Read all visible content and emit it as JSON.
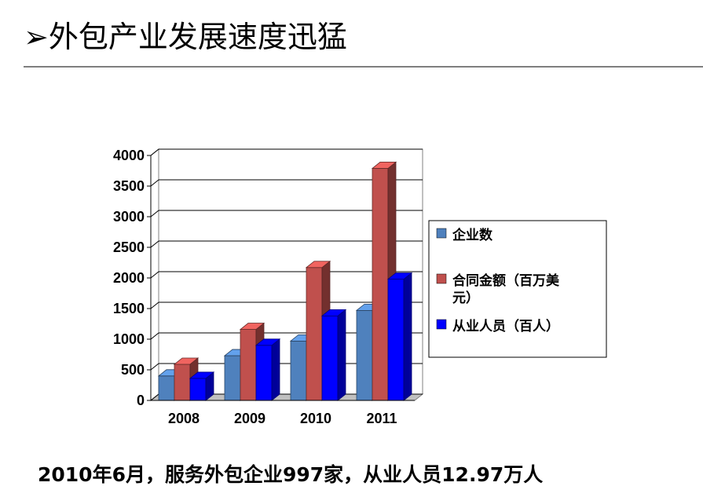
{
  "slide": {
    "title": "➢外包产业发展速度迅猛",
    "footer": "2010年6月，服务外包企业997家，从业人员12.97万人"
  },
  "chart_data": {
    "type": "bar",
    "categories": [
      "2008",
      "2009",
      "2010",
      "2011"
    ],
    "series": [
      {
        "name": "企业数",
        "values": [
          400,
          730,
          970,
          1470
        ],
        "color": "#4f81bd"
      },
      {
        "name": "合同金额（百万美元）",
        "values": [
          590,
          1160,
          2170,
          3790
        ],
        "color": "#c0504d"
      },
      {
        "name": "从业人员（百人）",
        "values": [
          360,
          900,
          1380,
          1980
        ],
        "color": "#0000ff"
      }
    ],
    "ylim": [
      0,
      4000
    ],
    "yticks": [
      "0",
      "500",
      "1000",
      "1500",
      "2000",
      "2500",
      "3000",
      "3500",
      "4000"
    ],
    "grid": true,
    "legend_position": "right",
    "style": "3d-clustered"
  }
}
